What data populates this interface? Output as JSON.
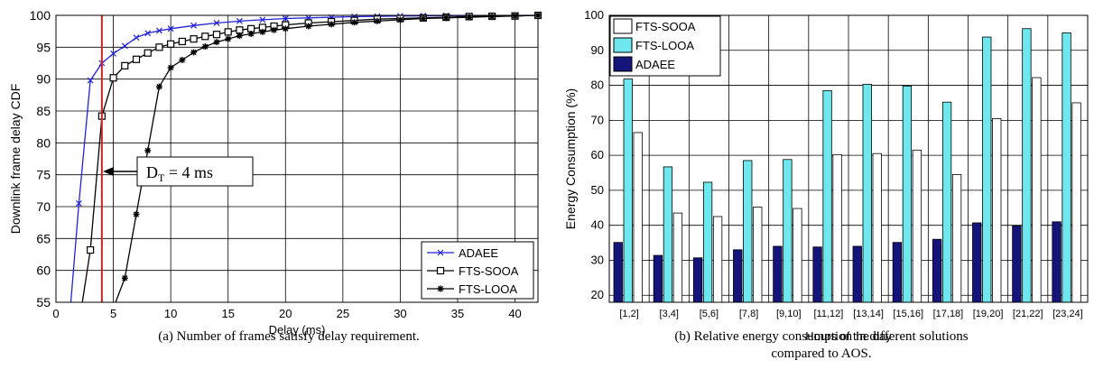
{
  "chart_data": [
    {
      "type": "line",
      "title": "",
      "xlabel": "Delay (ms)",
      "ylabel": "Downlink frame delay CDF",
      "xlim": [
        0,
        42
      ],
      "ylim": [
        55,
        100
      ],
      "xticks": [
        0,
        5,
        10,
        15,
        20,
        25,
        30,
        35,
        40
      ],
      "yticks": [
        55,
        60,
        65,
        70,
        75,
        80,
        85,
        90,
        95,
        100
      ],
      "grid": true,
      "legend_position": "bottom-right",
      "series": [
        {
          "name": "ADAEE",
          "color": "#2222dd",
          "marker": "x",
          "x": [
            1.3,
            2,
            3,
            4,
            5,
            6,
            7,
            8,
            9,
            10,
            12,
            14,
            16,
            18,
            20,
            22,
            24,
            26,
            28,
            30,
            32,
            34,
            36,
            38,
            40,
            42
          ],
          "y": [
            55,
            70.5,
            89.8,
            92.5,
            94,
            95.2,
            96.5,
            97.2,
            97.6,
            97.9,
            98.4,
            98.8,
            99.1,
            99.3,
            99.5,
            99.6,
            99.7,
            99.8,
            99.85,
            99.9,
            99.92,
            99.95,
            99.97,
            99.98,
            99.99,
            100
          ]
        },
        {
          "name": "FTS-SOOA",
          "color": "#000000",
          "marker": "square",
          "x": [
            2.3,
            3,
            4,
            5,
            6,
            7,
            8,
            9,
            10,
            11,
            12,
            13,
            14,
            15,
            16,
            17,
            18,
            19,
            20,
            22,
            24,
            26,
            28,
            30,
            32,
            34,
            36,
            38,
            40,
            42
          ],
          "y": [
            55,
            63.2,
            84.2,
            90.2,
            92.1,
            93.1,
            94.1,
            95,
            95.5,
            95.9,
            96.3,
            96.7,
            97,
            97.4,
            97.7,
            97.9,
            98.1,
            98.3,
            98.5,
            98.8,
            99,
            99.2,
            99.4,
            99.5,
            99.6,
            99.7,
            99.8,
            99.85,
            99.9,
            100
          ]
        },
        {
          "name": "FTS-LOOA",
          "color": "#000000",
          "marker": "star",
          "x": [
            5.2,
            6,
            7,
            8,
            9,
            10,
            11,
            12,
            13,
            14,
            15,
            16,
            17,
            18,
            19,
            20,
            22,
            24,
            26,
            28,
            30,
            32,
            34,
            36,
            38,
            40,
            42
          ],
          "y": [
            55,
            58.8,
            68.8,
            78.8,
            88.8,
            91.8,
            93,
            94.2,
            95.1,
            95.8,
            96.3,
            96.8,
            97.1,
            97.4,
            97.7,
            97.9,
            98.3,
            98.6,
            98.9,
            99.1,
            99.3,
            99.5,
            99.6,
            99.7,
            99.8,
            99.9,
            100
          ]
        }
      ],
      "annotations": [
        {
          "text": "D",
          "subscript": "T",
          "suffix": " = 4 ms",
          "x": 4,
          "color": "#cc2222"
        }
      ],
      "caption": "(a) Number of frames satisfy delay requirement."
    },
    {
      "type": "bar",
      "title": "",
      "xlabel": "Hours of the day",
      "ylabel": "Energy Consumption (%)",
      "ylim": [
        18,
        100
      ],
      "yticks": [
        20,
        30,
        40,
        50,
        60,
        70,
        80,
        90,
        100
      ],
      "grid": true,
      "legend_position": "top-left",
      "categories": [
        "[1,2]",
        "[3,4]",
        "[5,6]",
        "[7,8]",
        "[9,10]",
        "[11,12]",
        "[13,14]",
        "[15,16]",
        "[17,18]",
        "[19,20]",
        "[21,22]",
        "[23,24]"
      ],
      "series": [
        {
          "name": "FTS-SOOA",
          "color": "#ffffff",
          "values": [
            66.5,
            43.5,
            42.5,
            45.2,
            44.8,
            60.2,
            60.5,
            61.5,
            54.5,
            70.5,
            82.2,
            75
          ]
        },
        {
          "name": "FTS-LOOA",
          "color": "#6ee8ee",
          "values": [
            81.8,
            56.7,
            52.3,
            58.5,
            58.8,
            78.5,
            80.3,
            79.8,
            75.2,
            93.8,
            96.2,
            95
          ]
        },
        {
          "name": "ADAEE",
          "color": "#14147a",
          "values": [
            35.1,
            31.4,
            30.7,
            33,
            34,
            33.8,
            34,
            35.1,
            36,
            40.7,
            39.8,
            41
          ]
        }
      ],
      "draw_order": [
        "ADAEE",
        "FTS-LOOA",
        "FTS-SOOA"
      ],
      "caption_lines": [
        "(b)  Relative energy consumption in different solutions",
        "compared to AOS."
      ]
    }
  ]
}
